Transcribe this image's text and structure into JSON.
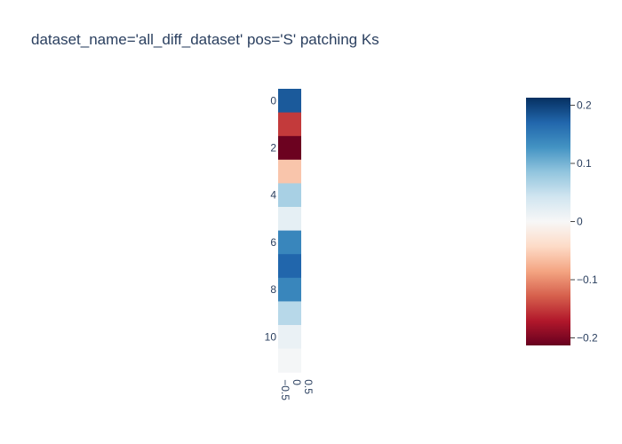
{
  "chart_data": {
    "type": "heatmap",
    "title": "dataset_name='all_diff_dataset' pos='S' patching Ks",
    "x_tick_labels": [
      "−0.5",
      "0",
      "0.5"
    ],
    "y_tick_labels": [
      "0",
      "2",
      "4",
      "6",
      "8",
      "10"
    ],
    "y_tick_values": [
      0,
      2,
      4,
      6,
      8,
      10
    ],
    "rows": [
      0,
      1,
      2,
      3,
      4,
      5,
      6,
      7,
      8,
      9,
      10,
      11
    ],
    "values": [
      0.18,
      -0.15,
      -0.21,
      -0.06,
      0.07,
      0.02,
      0.14,
      0.17,
      0.14,
      0.06,
      0.015,
      0.003
    ],
    "colorscale": "RdBu",
    "zmin": -0.213,
    "zmax": 0.213,
    "colorbar_tick_values": [
      0.2,
      0.1,
      0,
      -0.1,
      -0.2
    ],
    "colorbar_tick_labels": [
      "0.2",
      "0.1",
      "0",
      "−0.1",
      "−0.2"
    ]
  }
}
